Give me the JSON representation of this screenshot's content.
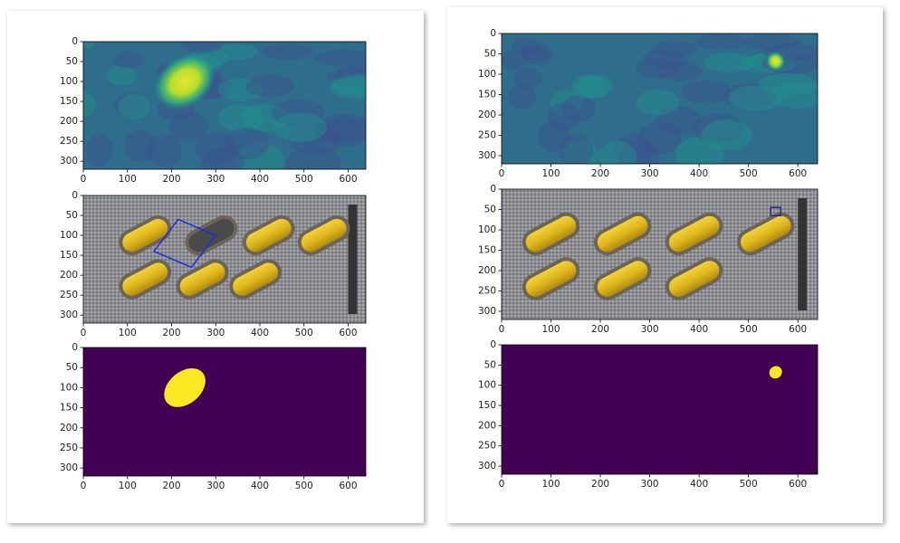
{
  "panels": [
    {
      "plots": [
        {
          "kind": "heatmap",
          "xlim": [
            0,
            640
          ],
          "ylim": [
            0,
            320
          ],
          "xticks": [
            0,
            100,
            200,
            300,
            400,
            500,
            600
          ],
          "yticks": [
            0,
            50,
            100,
            150,
            200,
            250,
            300
          ]
        },
        {
          "kind": "photo",
          "xlim": [
            0,
            640
          ],
          "ylim": [
            0,
            320
          ],
          "xticks": [
            0,
            100,
            200,
            300,
            400,
            500,
            600
          ],
          "yticks": [
            0,
            50,
            100,
            150,
            200,
            250,
            300
          ]
        },
        {
          "kind": "mask",
          "xlim": [
            0,
            640
          ],
          "ylim": [
            0,
            320
          ],
          "xticks": [
            0,
            100,
            200,
            300,
            400,
            500,
            600
          ],
          "yticks": [
            0,
            50,
            100,
            150,
            200,
            250,
            300
          ]
        }
      ]
    },
    {
      "plots": [
        {
          "kind": "heatmap",
          "xlim": [
            0,
            640
          ],
          "ylim": [
            0,
            320
          ],
          "xticks": [
            0,
            100,
            200,
            300,
            400,
            500,
            600
          ],
          "yticks": [
            0,
            50,
            100,
            150,
            200,
            250,
            300
          ]
        },
        {
          "kind": "photo",
          "xlim": [
            0,
            640
          ],
          "ylim": [
            0,
            320
          ],
          "xticks": [
            0,
            100,
            200,
            300,
            400,
            500,
            600
          ],
          "yticks": [
            0,
            50,
            100,
            150,
            200,
            250,
            300
          ]
        },
        {
          "kind": "mask",
          "xlim": [
            0,
            640
          ],
          "ylim": [
            0,
            320
          ],
          "xticks": [
            0,
            100,
            200,
            300,
            400,
            500,
            600
          ],
          "yticks": [
            0,
            50,
            100,
            150,
            200,
            250,
            300
          ]
        }
      ]
    }
  ]
}
